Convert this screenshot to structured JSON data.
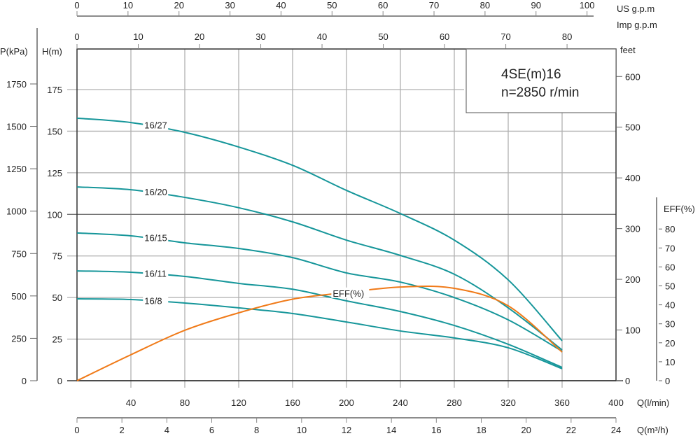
{
  "chart_data": {
    "type": "line",
    "title": "4SE(m)16",
    "subtitle": "n=2850 r/min",
    "colors": {
      "head_curves": "#16969a",
      "efficiency": "#f07a18",
      "grid": "#b0b0b0",
      "axis": "#333333"
    },
    "grid": true,
    "x": [
      0,
      40,
      80,
      120,
      160,
      200,
      240,
      280,
      320,
      360
    ],
    "xlim": [
      0,
      400
    ],
    "ylim": [
      0,
      200
    ],
    "series": [
      {
        "name": "16/27",
        "axis": "H(m)",
        "values": [
          157.8,
          155.2,
          149.3,
          140.5,
          129.5,
          114.4,
          100.5,
          84.5,
          60.6,
          24.0
        ]
      },
      {
        "name": "16/20",
        "axis": "H(m)",
        "values": [
          116.5,
          114.8,
          110.2,
          104.0,
          95.5,
          84.5,
          75.3,
          64.0,
          43.8,
          18.5
        ]
      },
      {
        "name": "16/15",
        "axis": "H(m)",
        "values": [
          88.8,
          87.1,
          82.9,
          79.5,
          74.0,
          64.8,
          59.3,
          50.0,
          36.6,
          17.7
        ]
      },
      {
        "name": "16/11",
        "axis": "H(m)",
        "values": [
          66.0,
          65.2,
          62.7,
          58.5,
          55.0,
          48.0,
          41.6,
          33.2,
          21.9,
          8.0
        ]
      },
      {
        "name": "16/8",
        "axis": "H(m)",
        "values": [
          49.2,
          48.8,
          46.7,
          43.8,
          40.4,
          35.3,
          29.9,
          25.7,
          19.8,
          7.2
        ]
      },
      {
        "name": "EFF(%)",
        "axis": "EFF(%)",
        "values": [
          0,
          13.7,
          26.6,
          35.8,
          43.0,
          46.5,
          49.4,
          48.7,
          39.5,
          15.1
        ]
      }
    ],
    "axes": {
      "p_kpa": {
        "label": "P(kPa)",
        "ticks": [
          "0",
          "250",
          "500",
          "750",
          "1000",
          "1250",
          "1500",
          "1750"
        ]
      },
      "h_m": {
        "label": "H(m)",
        "ticks": [
          "0",
          "25",
          "50",
          "75",
          "100",
          "125",
          "150",
          "175"
        ]
      },
      "feet": {
        "label": "feet",
        "ticks": [
          "0",
          "100",
          "200",
          "300",
          "400",
          "500",
          "600"
        ]
      },
      "eff": {
        "label": "EFF(%)",
        "ticks": [
          "0",
          "10",
          "20",
          "30",
          "40",
          "50",
          "60",
          "70",
          "80"
        ]
      },
      "q_lmin": {
        "label": "Q(l/min)",
        "ticks": [
          "40",
          "80",
          "120",
          "160",
          "200",
          "240",
          "280",
          "320",
          "360",
          "400"
        ]
      },
      "q_m3h": {
        "label": "Q(m³/h)",
        "ticks": [
          "0",
          "2",
          "4",
          "6",
          "8",
          "10",
          "12",
          "14",
          "16",
          "18",
          "20",
          "22",
          "24"
        ]
      },
      "us_gpm": {
        "label": "US  g.p.m",
        "ticks": [
          "0",
          "10",
          "20",
          "30",
          "40",
          "50",
          "60",
          "70",
          "80",
          "90",
          "100"
        ]
      },
      "imp_gpm": {
        "label": "Imp  g.p.m",
        "ticks": [
          "0",
          "10",
          "20",
          "30",
          "40",
          "50",
          "60",
          "70",
          "80"
        ]
      }
    }
  }
}
